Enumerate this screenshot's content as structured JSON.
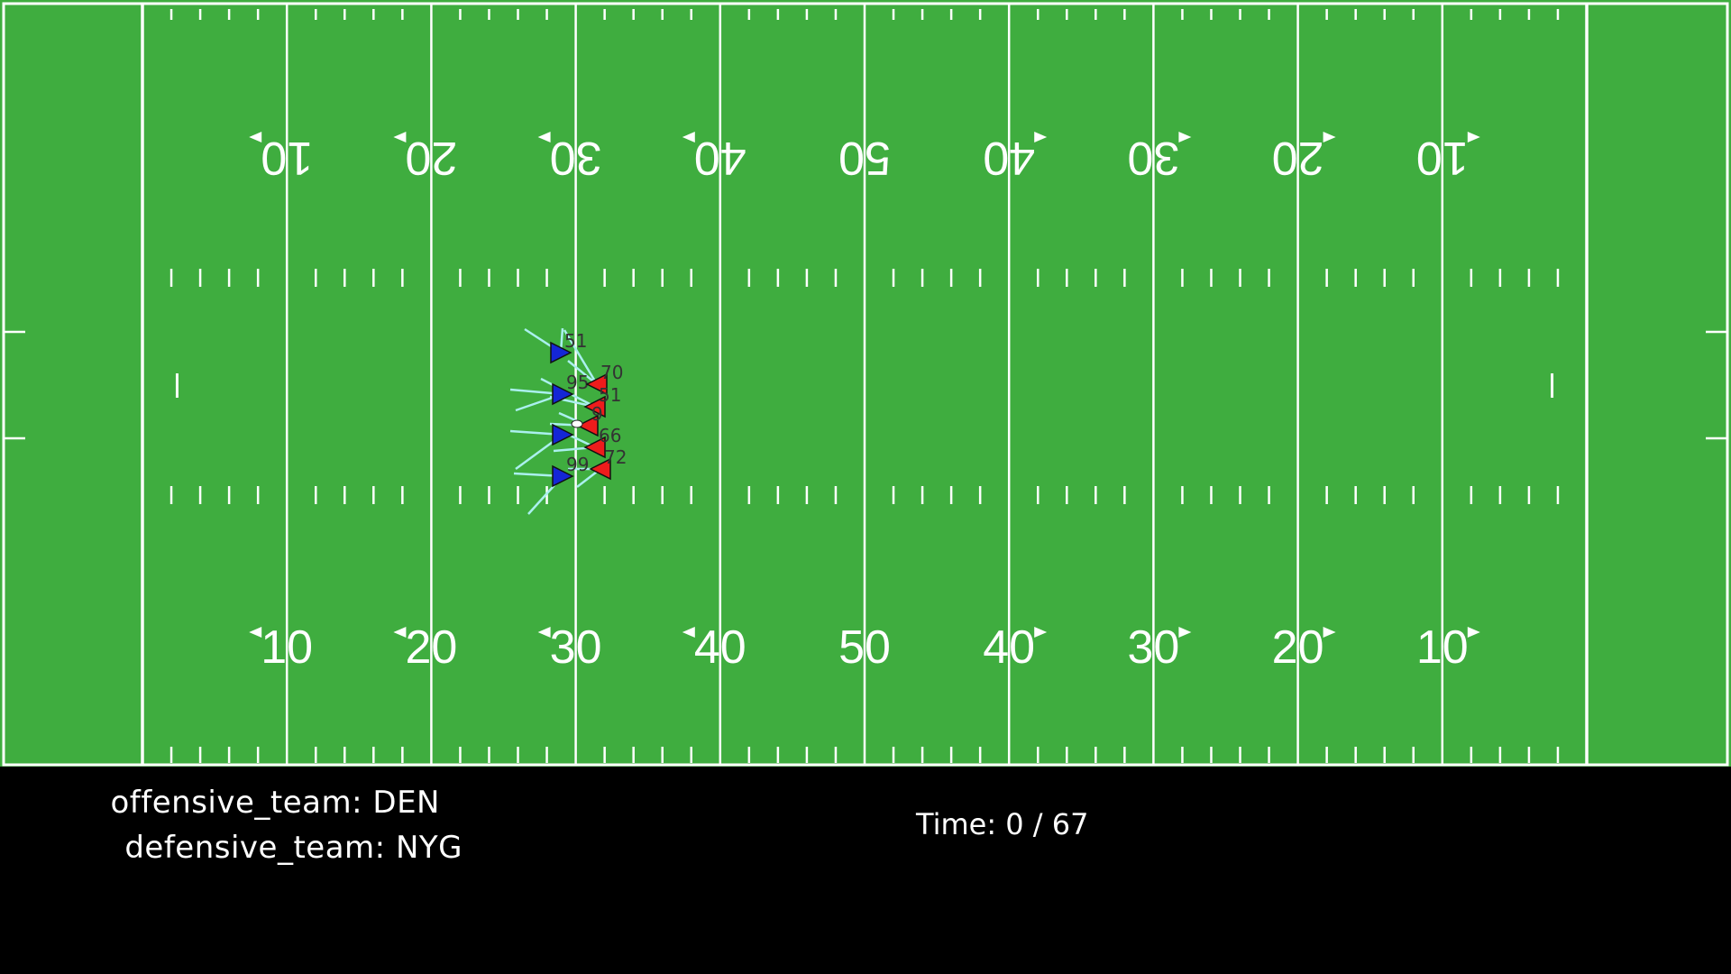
{
  "field": {
    "colors": {
      "grass": "#3fad3f",
      "lines": "#ffffff"
    },
    "yard_numbers_bottom": [
      "10",
      "20",
      "30",
      "40",
      "50",
      "40",
      "30",
      "20",
      "10"
    ],
    "yard_numbers_top": [
      "10",
      "20",
      "30",
      "40",
      "50",
      "40",
      "30",
      "20",
      "10"
    ]
  },
  "players": {
    "offense_color": "#ee1c1c",
    "defense_color": "#1426d6",
    "ball_color": "#ffffff",
    "trail_color": "#aaf0ee",
    "defense": [
      {
        "jersey": "51"
      },
      {
        "jersey": "95"
      },
      {
        "jersey": ""
      },
      {
        "jersey": "99"
      }
    ],
    "offense": [
      {
        "jersey": "70"
      },
      {
        "jersey": "51"
      },
      {
        "jersey": "9"
      },
      {
        "jersey": "66"
      },
      {
        "jersey": "72"
      }
    ]
  },
  "info": {
    "offensive_team_label": "offensive_team:",
    "offensive_team": "DEN",
    "defensive_team_label": "defensive_team:",
    "defensive_team": "NYG",
    "time_label": "Time:",
    "time_current": "0",
    "time_separator": "/",
    "time_total": "67"
  }
}
